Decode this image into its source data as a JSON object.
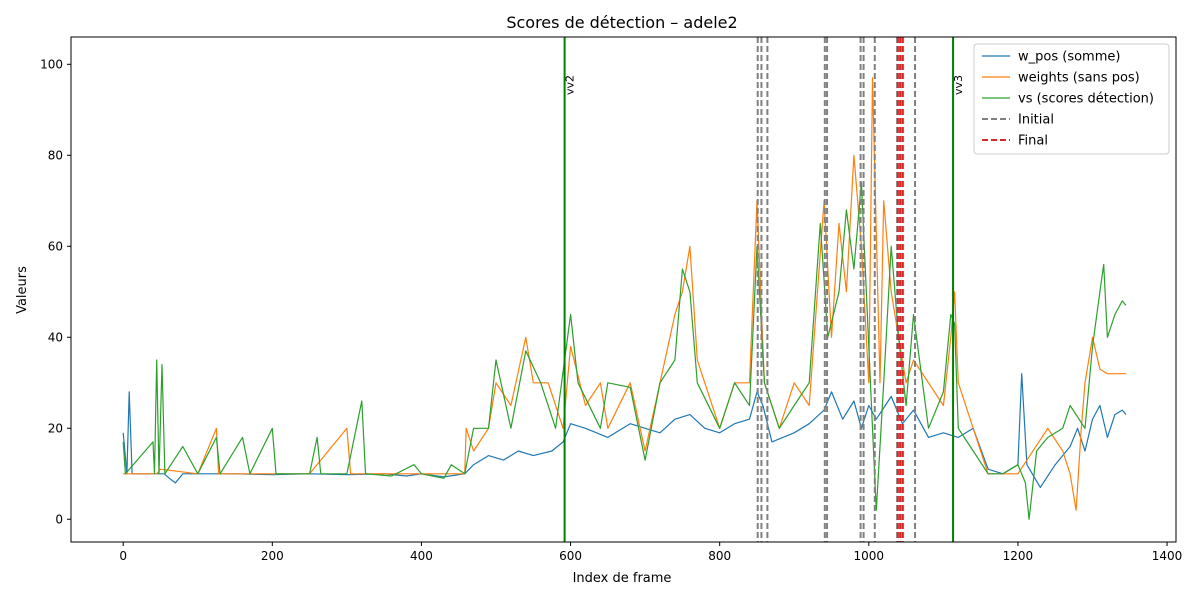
{
  "chart_data": {
    "type": "line",
    "title": "Scores de détection – adele2",
    "xlabel": "Index de frame",
    "ylabel": "Valeurs",
    "xlim": [
      -70,
      1412
    ],
    "ylim": [
      -5,
      106
    ],
    "xticks": [
      0,
      200,
      400,
      600,
      800,
      1000,
      1200,
      1400
    ],
    "yticks": [
      0,
      20,
      40,
      60,
      80,
      100
    ],
    "grid": false,
    "legend_position": "top-right",
    "legend": [
      {
        "label": "w_pos (somme)",
        "color": "#1f77b4",
        "style": "solid"
      },
      {
        "label": "weights (sans pos)",
        "color": "#ff7f0e",
        "style": "solid"
      },
      {
        "label": "vs (scores détection)",
        "color": "#2ca02c",
        "style": "solid"
      },
      {
        "label": "Initial",
        "color": "#808080",
        "style": "dashed"
      },
      {
        "label": "Final",
        "color": "#d62728",
        "style": "dashed"
      }
    ],
    "series": [
      {
        "name": "w_pos (somme)",
        "color": "#1f77b4",
        "points": [
          [
            0,
            19
          ],
          [
            5,
            10
          ],
          [
            8,
            28
          ],
          [
            12,
            10
          ],
          [
            40,
            10
          ],
          [
            55,
            10
          ],
          [
            62,
            9
          ],
          [
            70,
            8
          ],
          [
            80,
            10
          ],
          [
            100,
            10
          ],
          [
            150,
            10
          ],
          [
            200,
            9.8
          ],
          [
            250,
            10
          ],
          [
            300,
            9.8
          ],
          [
            350,
            10
          ],
          [
            380,
            9.5
          ],
          [
            400,
            10
          ],
          [
            430,
            9.3
          ],
          [
            458,
            10
          ],
          [
            470,
            12
          ],
          [
            490,
            14
          ],
          [
            510,
            13
          ],
          [
            530,
            15
          ],
          [
            550,
            14
          ],
          [
            575,
            15
          ],
          [
            590,
            17
          ],
          [
            600,
            21
          ],
          [
            620,
            20
          ],
          [
            650,
            18
          ],
          [
            680,
            21
          ],
          [
            700,
            20
          ],
          [
            720,
            19
          ],
          [
            740,
            22
          ],
          [
            760,
            23
          ],
          [
            780,
            20
          ],
          [
            800,
            19
          ],
          [
            820,
            21
          ],
          [
            840,
            22
          ],
          [
            850,
            28
          ],
          [
            858,
            25
          ],
          [
            870,
            17
          ],
          [
            900,
            19
          ],
          [
            920,
            21
          ],
          [
            940,
            24
          ],
          [
            950,
            28
          ],
          [
            965,
            22
          ],
          [
            980,
            26
          ],
          [
            990,
            20
          ],
          [
            1000,
            25
          ],
          [
            1010,
            22
          ],
          [
            1030,
            27
          ],
          [
            1045,
            21
          ],
          [
            1060,
            24
          ],
          [
            1080,
            18
          ],
          [
            1100,
            19
          ],
          [
            1120,
            18
          ],
          [
            1140,
            20
          ],
          [
            1160,
            11
          ],
          [
            1180,
            10
          ],
          [
            1200,
            12
          ],
          [
            1205,
            32
          ],
          [
            1212,
            12
          ],
          [
            1230,
            7
          ],
          [
            1250,
            12
          ],
          [
            1270,
            16
          ],
          [
            1280,
            20
          ],
          [
            1290,
            15
          ],
          [
            1300,
            22
          ],
          [
            1310,
            25
          ],
          [
            1320,
            18
          ],
          [
            1330,
            23
          ],
          [
            1340,
            24
          ],
          [
            1345,
            23
          ]
        ]
      },
      {
        "name": "weights (sans pos)",
        "color": "#ff7f0e",
        "points": [
          [
            0,
            10
          ],
          [
            45,
            10
          ],
          [
            50,
            11
          ],
          [
            100,
            10
          ],
          [
            125,
            20
          ],
          [
            128,
            10
          ],
          [
            200,
            10
          ],
          [
            250,
            10
          ],
          [
            300,
            20
          ],
          [
            305,
            10
          ],
          [
            400,
            10
          ],
          [
            458,
            10
          ],
          [
            460,
            20
          ],
          [
            470,
            15
          ],
          [
            490,
            20
          ],
          [
            500,
            30
          ],
          [
            520,
            25
          ],
          [
            540,
            40
          ],
          [
            550,
            30
          ],
          [
            570,
            30
          ],
          [
            590,
            20
          ],
          [
            600,
            38
          ],
          [
            620,
            25
          ],
          [
            640,
            30
          ],
          [
            650,
            20
          ],
          [
            680,
            30
          ],
          [
            700,
            15
          ],
          [
            720,
            30
          ],
          [
            740,
            45
          ],
          [
            750,
            50
          ],
          [
            760,
            60
          ],
          [
            770,
            35
          ],
          [
            800,
            20
          ],
          [
            820,
            30
          ],
          [
            840,
            30
          ],
          [
            850,
            70
          ],
          [
            860,
            30
          ],
          [
            880,
            20
          ],
          [
            900,
            30
          ],
          [
            920,
            25
          ],
          [
            940,
            70
          ],
          [
            950,
            40
          ],
          [
            960,
            65
          ],
          [
            970,
            50
          ],
          [
            980,
            80
          ],
          [
            990,
            60
          ],
          [
            1000,
            30
          ],
          [
            1005,
            97
          ],
          [
            1015,
            30
          ],
          [
            1020,
            70
          ],
          [
            1030,
            50
          ],
          [
            1040,
            40
          ],
          [
            1050,
            30
          ],
          [
            1060,
            35
          ],
          [
            1080,
            30
          ],
          [
            1100,
            25
          ],
          [
            1110,
            40
          ],
          [
            1115,
            50
          ],
          [
            1120,
            30
          ],
          [
            1140,
            20
          ],
          [
            1160,
            10
          ],
          [
            1200,
            10
          ],
          [
            1240,
            20
          ],
          [
            1260,
            15
          ],
          [
            1270,
            10
          ],
          [
            1278,
            2
          ],
          [
            1285,
            20
          ],
          [
            1290,
            30
          ],
          [
            1300,
            40
          ],
          [
            1310,
            33
          ],
          [
            1320,
            32
          ],
          [
            1345,
            32
          ]
        ]
      },
      {
        "name": "vs (scores détection)",
        "color": "#2ca02c",
        "points": [
          [
            0,
            17
          ],
          [
            3,
            10
          ],
          [
            40,
            17
          ],
          [
            42,
            10
          ],
          [
            45,
            35
          ],
          [
            48,
            10
          ],
          [
            52,
            34
          ],
          [
            56,
            10
          ],
          [
            80,
            16
          ],
          [
            100,
            10
          ],
          [
            125,
            18
          ],
          [
            130,
            10
          ],
          [
            160,
            18
          ],
          [
            170,
            10
          ],
          [
            200,
            20
          ],
          [
            205,
            10
          ],
          [
            250,
            10
          ],
          [
            260,
            18
          ],
          [
            265,
            10
          ],
          [
            300,
            10
          ],
          [
            320,
            26
          ],
          [
            325,
            10
          ],
          [
            360,
            9.5
          ],
          [
            390,
            12
          ],
          [
            400,
            10
          ],
          [
            430,
            9
          ],
          [
            440,
            12
          ],
          [
            458,
            10
          ],
          [
            470,
            20
          ],
          [
            490,
            20
          ],
          [
            500,
            35
          ],
          [
            520,
            20
          ],
          [
            540,
            37
          ],
          [
            560,
            30
          ],
          [
            580,
            20
          ],
          [
            600,
            45
          ],
          [
            610,
            30
          ],
          [
            640,
            20
          ],
          [
            650,
            30
          ],
          [
            680,
            29
          ],
          [
            700,
            13
          ],
          [
            720,
            30
          ],
          [
            740,
            35
          ],
          [
            750,
            55
          ],
          [
            760,
            50
          ],
          [
            770,
            30
          ],
          [
            800,
            20
          ],
          [
            820,
            30
          ],
          [
            840,
            25
          ],
          [
            850,
            60
          ],
          [
            860,
            30
          ],
          [
            880,
            20
          ],
          [
            900,
            25
          ],
          [
            920,
            30
          ],
          [
            935,
            65
          ],
          [
            945,
            40
          ],
          [
            960,
            50
          ],
          [
            970,
            68
          ],
          [
            980,
            55
          ],
          [
            990,
            74
          ],
          [
            1000,
            38
          ],
          [
            1005,
            20
          ],
          [
            1010,
            2
          ],
          [
            1020,
            30
          ],
          [
            1030,
            60
          ],
          [
            1040,
            40
          ],
          [
            1050,
            25
          ],
          [
            1060,
            45
          ],
          [
            1080,
            20
          ],
          [
            1100,
            28
          ],
          [
            1110,
            45
          ],
          [
            1115,
            43
          ],
          [
            1120,
            20
          ],
          [
            1140,
            15
          ],
          [
            1160,
            10
          ],
          [
            1180,
            10
          ],
          [
            1200,
            12
          ],
          [
            1210,
            8
          ],
          [
            1215,
            0
          ],
          [
            1225,
            15
          ],
          [
            1240,
            18
          ],
          [
            1260,
            20
          ],
          [
            1270,
            25
          ],
          [
            1290,
            20
          ],
          [
            1300,
            38
          ],
          [
            1310,
            50
          ],
          [
            1315,
            56
          ],
          [
            1320,
            40
          ],
          [
            1330,
            45
          ],
          [
            1340,
            48
          ],
          [
            1345,
            47
          ]
        ]
      }
    ],
    "vlines_green": [
      {
        "x": 592,
        "label": "vv2"
      },
      {
        "x": 1113,
        "label": "vv3"
      }
    ],
    "vlines_initial": [
      851,
      856,
      864,
      941,
      944,
      989,
      993,
      1008,
      1038,
      1046,
      1062
    ],
    "vlines_final": [
      1039,
      1042,
      1045
    ]
  }
}
